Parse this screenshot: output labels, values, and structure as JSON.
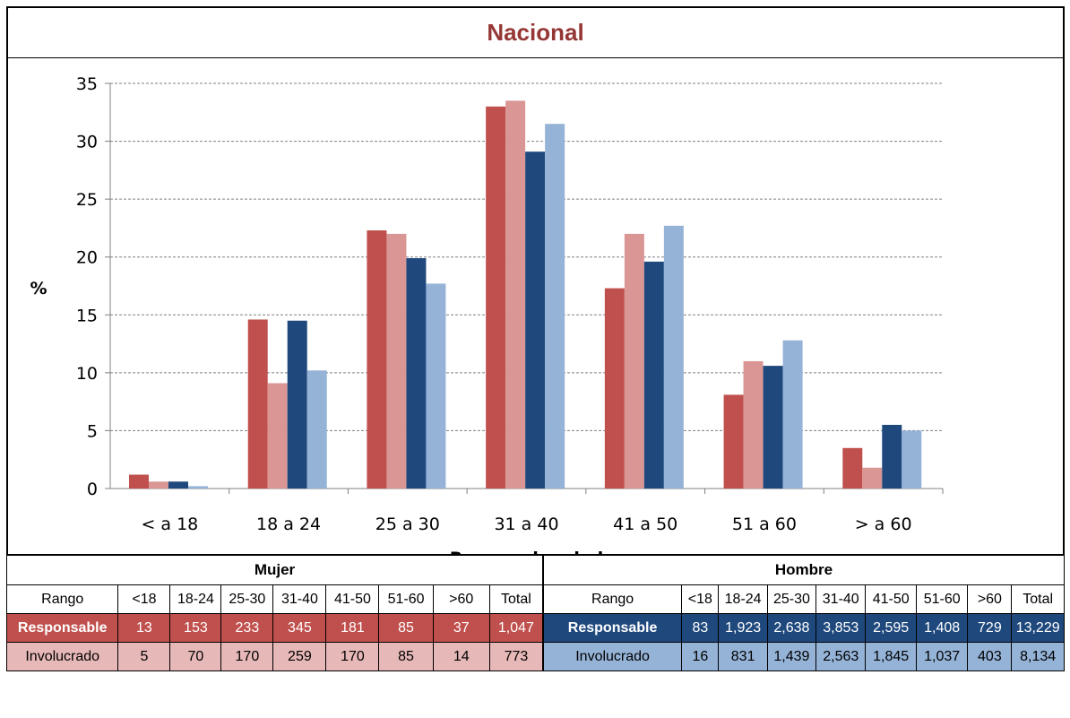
{
  "chart_data": {
    "type": "bar",
    "title": "Nacional",
    "xlabel": "Rangos de edad",
    "ylabel": "%",
    "ylim": [
      0,
      35
    ],
    "yticks": [
      0,
      5,
      10,
      15,
      20,
      25,
      30,
      35
    ],
    "grid": true,
    "categories": [
      "< a 18",
      "18 a 24",
      "25 a 30",
      "31 a 40",
      "41 a 50",
      "51 a 60",
      "> a 60"
    ],
    "series": [
      {
        "color": "#c0504d",
        "values": [
          1.2,
          14.6,
          22.3,
          33.0,
          17.3,
          8.1,
          3.5
        ]
      },
      {
        "color": "#d99694",
        "values": [
          0.6,
          9.1,
          22.0,
          33.5,
          22.0,
          11.0,
          1.8
        ]
      },
      {
        "color": "#1f497d",
        "values": [
          0.6,
          14.5,
          19.9,
          29.1,
          19.6,
          10.6,
          5.5
        ]
      },
      {
        "color": "#95b3d7",
        "values": [
          0.2,
          10.2,
          17.7,
          31.5,
          22.7,
          12.8,
          5.0
        ]
      }
    ]
  },
  "tables": {
    "mujer": {
      "title": "Mujer",
      "headers": [
        "Rango",
        "<18",
        "18-24",
        "25-30",
        "31-40",
        "41-50",
        "51-60",
        ">60",
        "Total"
      ],
      "rows": [
        {
          "label": "Responsable",
          "values": [
            "13",
            "153",
            "233",
            "345",
            "181",
            "85",
            "37",
            "1,047"
          ]
        },
        {
          "label": "Involucrado",
          "values": [
            "5",
            "70",
            "170",
            "259",
            "170",
            "85",
            "14",
            "773"
          ]
        }
      ]
    },
    "hombre": {
      "title": "Hombre",
      "headers": [
        "Rango",
        "<18",
        "18-24",
        "25-30",
        "31-40",
        "41-50",
        "51-60",
        ">60",
        "Total"
      ],
      "rows": [
        {
          "label": "Responsable",
          "values": [
            "83",
            "1,923",
            "2,638",
            "3,853",
            "2,595",
            "1,408",
            "729",
            "13,229"
          ]
        },
        {
          "label": "Involucrado",
          "values": [
            "16",
            "831",
            "1,439",
            "2,563",
            "1,845",
            "1,037",
            "403",
            "8,134"
          ]
        }
      ]
    }
  }
}
